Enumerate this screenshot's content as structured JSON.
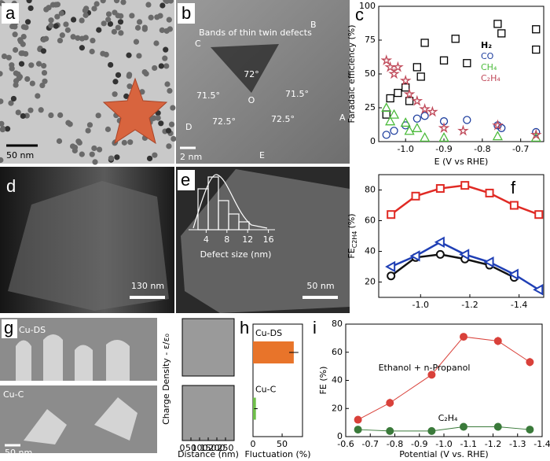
{
  "panels": {
    "a": {
      "label": "a",
      "scale": "50 nm"
    },
    "b": {
      "label": "b",
      "scale": "2 nm",
      "title": "Bands of thin twin defects",
      "angles": [
        "72°",
        "71.5°",
        "71.5°",
        "72.5°",
        "72.5°"
      ],
      "center": "O",
      "vertices": [
        "A",
        "B",
        "C",
        "D",
        "E"
      ]
    },
    "c": {
      "label": "c"
    },
    "d": {
      "label": "d",
      "scale": "130 nm"
    },
    "e": {
      "label": "e",
      "scale": "50 nm",
      "hist_xlabel": "Defect size (nm)",
      "hist_ticks": [
        4,
        8,
        12,
        16
      ]
    },
    "f": {
      "label": "f"
    },
    "g": {
      "label": "g",
      "top": "Cu-DS",
      "bottom": "Cu-C",
      "scale": "50 nm",
      "ylabel": "Charge Density - ε/ε₀"
    },
    "h": {
      "label": "h"
    },
    "i": {
      "label": "i"
    }
  },
  "chart_data": [
    {
      "type": "scatter",
      "xlabel": "E (V vs RHE)",
      "ylabel": "Faradaic efficiency (%)",
      "xlim": [
        -1.07,
        -0.64
      ],
      "xticks": [
        {
          "value": -1,
          "label": "-1.0"
        },
        -0.9,
        -0.8,
        -0.7
      ],
      "ylim": [
        0,
        100
      ],
      "yticks": [
        0,
        25,
        50,
        75,
        100
      ],
      "series": [
        {
          "name": "H₂",
          "color": "#000000",
          "marker": "square",
          "x": [
            -1.05,
            -1.04,
            -1.02,
            -1.0,
            -0.99,
            -0.97,
            -0.96,
            -0.95,
            -0.9,
            -0.87,
            -0.84,
            -0.76,
            -0.75,
            -0.66,
            -0.66
          ],
          "values": [
            20,
            32,
            36,
            40,
            30,
            55,
            48,
            73,
            60,
            76,
            58,
            87,
            80,
            83,
            68
          ]
        },
        {
          "name": "CO",
          "color": "#1f3f9f",
          "marker": "circle",
          "x": [
            -1.05,
            -1.03,
            -1.0,
            -0.97,
            -0.95,
            -0.9,
            -0.84,
            -0.76,
            -0.75,
            -0.66
          ],
          "values": [
            5,
            8,
            12,
            17,
            19,
            15,
            16,
            12,
            10,
            7
          ]
        },
        {
          "name": "CH₄",
          "color": "#4cbb3c",
          "marker": "triangle",
          "x": [
            -1.05,
            -1.04,
            -1.03,
            -1.0,
            -0.99,
            -0.97,
            -0.95,
            -0.9,
            -0.76,
            -0.66
          ],
          "values": [
            25,
            15,
            20,
            14,
            8,
            10,
            3,
            3,
            4,
            3
          ]
        },
        {
          "name": "C₂H₄",
          "color": "#c04a5a",
          "marker": "star",
          "x": [
            -1.05,
            -1.04,
            -1.03,
            -1.02,
            -1.0,
            -0.99,
            -0.97,
            -0.95,
            -0.93,
            -0.9,
            -0.85,
            -0.76,
            -0.66
          ],
          "values": [
            60,
            55,
            50,
            55,
            45,
            35,
            30,
            24,
            22,
            10,
            8,
            12,
            5
          ]
        }
      ]
    },
    {
      "type": "line",
      "ylabel": "FE",
      "ylabel_sub": "C2H4",
      "ylabel_unit": "(%)",
      "x": [
        -0.88,
        -0.98,
        -1.08,
        -1.18,
        -1.28,
        -1.38,
        -1.48
      ],
      "xlim": [
        -0.83,
        -1.5
      ],
      "xticks": [
        {
          "value": -1,
          "label": "-1.0"
        },
        -1.2,
        -1.4
      ],
      "ylim": [
        10,
        90
      ],
      "yticks": [
        20,
        40,
        60,
        80
      ],
      "series": [
        {
          "color": "#e02a24",
          "marker": "square",
          "values": [
            64,
            76,
            81,
            83,
            78,
            70,
            64
          ]
        },
        {
          "color": "#111111",
          "marker": "circle",
          "values": [
            24,
            36,
            38,
            35,
            31,
            23,
            null
          ]
        },
        {
          "color": "#1f3fb5",
          "marker": "triangle-left",
          "values": [
            30,
            37,
            46,
            38,
            33,
            25,
            15
          ]
        }
      ]
    },
    {
      "type": "bar",
      "xlabel": "Fluctuation (%)",
      "categories": [
        "Cu-DS",
        "Cu-C"
      ],
      "values": [
        70,
        5
      ],
      "errors": [
        8,
        3
      ],
      "colors": [
        "#e8742a",
        "#6fbf4a"
      ],
      "xlim": [
        0,
        85
      ],
      "xticks": [
        0,
        50
      ]
    },
    {
      "type": "line",
      "xlabel": "Potential (V vs. RHE)",
      "ylabel": "FE (%)",
      "x": [
        -0.65,
        -0.78,
        -0.95,
        -1.08,
        -1.22,
        -1.35
      ],
      "xlim": [
        -0.6,
        -1.4
      ],
      "xticks": [
        -0.6,
        -0.7,
        -0.8,
        -0.9,
        {
          "value": -1,
          "label": "-1.0"
        },
        -1.1,
        -1.2,
        -1.3,
        -1.4
      ],
      "ylim": [
        0,
        80
      ],
      "yticks": [
        0,
        20,
        40,
        60,
        80
      ],
      "series": [
        {
          "name": "Ethanol + n-Propanol",
          "color": "#d9413a",
          "marker": "circle",
          "values": [
            12,
            24,
            44,
            71,
            68,
            53
          ],
          "errors": [
            2,
            3,
            2,
            2,
            3,
            3
          ]
        },
        {
          "name": "C₂H₄",
          "color": "#3a7a3a",
          "marker": "circle",
          "values": [
            5,
            4,
            4,
            7,
            7,
            5
          ],
          "errors": [
            1,
            1,
            1,
            1,
            1,
            1
          ]
        }
      ]
    },
    {
      "type": "trace",
      "xlim": [
        0,
        300
      ]
    },
    {
      "type": "trace",
      "xlabel": "Distance (nm)",
      "xlim": [
        0,
        300
      ],
      "xticks": [
        0,
        50,
        100,
        150,
        200,
        250
      ]
    }
  ]
}
